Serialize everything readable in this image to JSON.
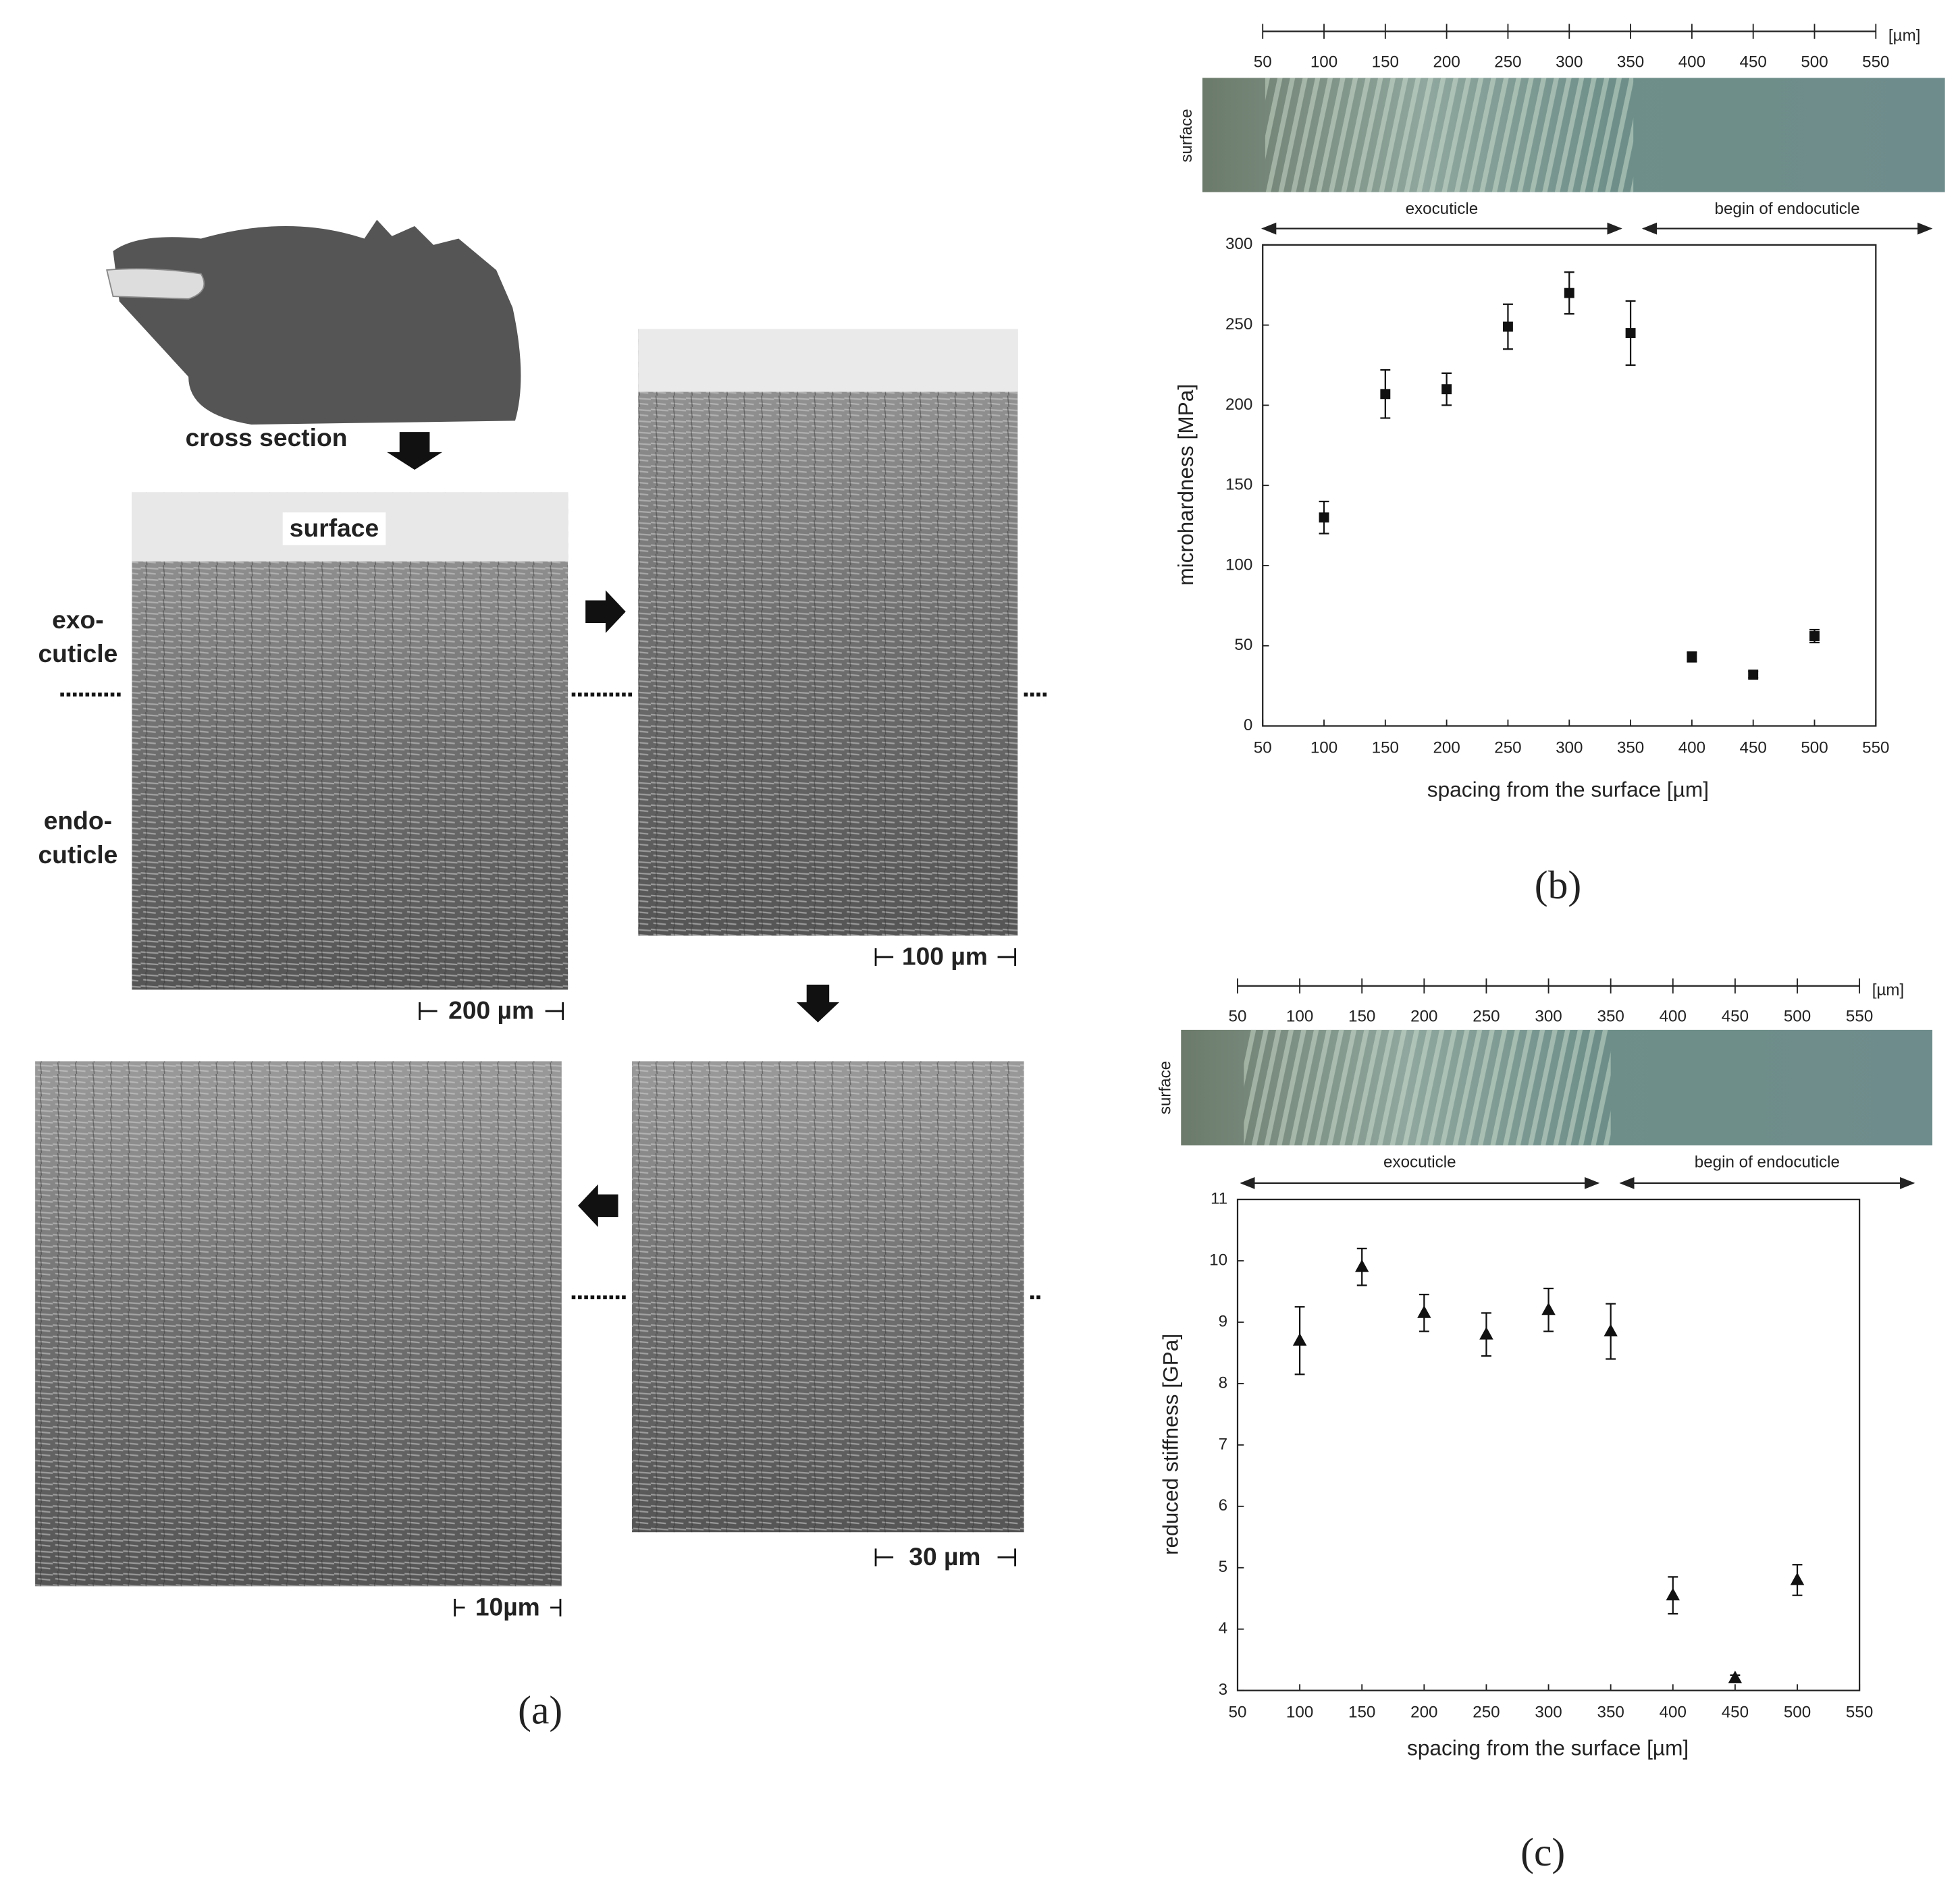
{
  "panel_a": {
    "caption": "(a)",
    "cross_section": "cross section",
    "surface": "surface",
    "exo": [
      "exo-",
      "cuticle"
    ],
    "endo": [
      "endo-",
      "cuticle"
    ],
    "scale_bars": [
      "200 µm",
      "100 µm",
      "30 µm",
      "10µm"
    ]
  },
  "chart_data": [
    {
      "type": "scatter",
      "caption": "(b)",
      "xlabel": "spacing from the surface [µm]",
      "ylabel": "microhardness  [MPa]",
      "x": [
        100,
        150,
        200,
        250,
        300,
        350,
        400,
        450,
        500
      ],
      "values": [
        130,
        207,
        210,
        249,
        270,
        245,
        43,
        32,
        56
      ],
      "errors": [
        10,
        15,
        10,
        14,
        13,
        20,
        3,
        2,
        4
      ],
      "marker": "square",
      "color": "#111111",
      "xlim": [
        50,
        550
      ],
      "xticks": [
        50,
        100,
        150,
        200,
        250,
        300,
        350,
        400,
        450,
        500,
        550
      ],
      "ylim": [
        0,
        300
      ],
      "yticks": [
        0,
        50,
        100,
        150,
        200,
        250,
        300
      ],
      "top_scale": {
        "ticks": [
          50,
          100,
          150,
          200,
          250,
          300,
          350,
          400,
          450,
          500,
          550
        ],
        "unit": "[µm]"
      },
      "regions": [
        "exocuticle",
        "begin of endocuticle"
      ],
      "side_label": "surface"
    },
    {
      "type": "scatter",
      "caption": "(c)",
      "xlabel": "spacing from the surface [µm]",
      "ylabel": "reduced stiffness [GPa]",
      "x": [
        100,
        150,
        200,
        250,
        300,
        350,
        400,
        450,
        500
      ],
      "values": [
        8.7,
        9.9,
        9.15,
        8.8,
        9.2,
        8.85,
        4.55,
        3.2,
        4.8
      ],
      "errors": [
        0.55,
        0.3,
        0.3,
        0.35,
        0.35,
        0.45,
        0.3,
        0.05,
        0.25
      ],
      "marker": "triangle",
      "color": "#111111",
      "xlim": [
        50,
        550
      ],
      "xticks": [
        50,
        100,
        150,
        200,
        250,
        300,
        350,
        400,
        450,
        500,
        550
      ],
      "ylim": [
        3,
        11
      ],
      "yticks": [
        3,
        4,
        5,
        6,
        7,
        8,
        9,
        10,
        11
      ],
      "top_scale": {
        "ticks": [
          50,
          100,
          150,
          200,
          250,
          300,
          350,
          400,
          450,
          500,
          550
        ],
        "unit": "[µm]"
      },
      "regions": [
        "exocuticle",
        "begin of endocuticle"
      ],
      "side_label": "surface"
    }
  ]
}
